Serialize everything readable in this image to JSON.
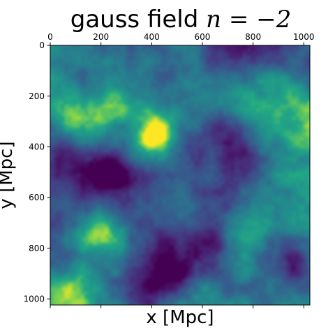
{
  "chart_data": {
    "type": "heatmap",
    "title_prefix": "gauss field ",
    "title_math": "n = −2",
    "xlabel": "x [Mpc]",
    "ylabel": "y [Mpc]",
    "xlim": [
      0,
      1024
    ],
    "ylim": [
      1024,
      0
    ],
    "x_ticks": [
      0,
      200,
      400,
      600,
      800,
      1000
    ],
    "y_ticks": [
      0,
      200,
      400,
      600,
      800,
      1000
    ],
    "x_tick_labels": [
      "0",
      "200",
      "400",
      "600",
      "800",
      "1000"
    ],
    "y_tick_labels": [
      "0",
      "200",
      "400",
      "600",
      "800",
      "1000"
    ],
    "x_ticklabels_position": "top",
    "colormap": "viridis",
    "grid": false,
    "features": [
      {
        "kind": "peak",
        "x": 425,
        "y": 330,
        "size": 55,
        "amp": 1.0
      },
      {
        "kind": "peak",
        "x": 420,
        "y": 400,
        "size": 75,
        "amp": 0.55
      },
      {
        "kind": "peak",
        "x": 130,
        "y": 285,
        "size": 75,
        "amp": 0.85
      },
      {
        "kind": "peak",
        "x": 60,
        "y": 270,
        "size": 60,
        "amp": 0.4
      },
      {
        "kind": "peak",
        "x": 185,
        "y": 740,
        "size": 45,
        "amp": 0.55
      },
      {
        "kind": "peak",
        "x": 75,
        "y": 955,
        "size": 45,
        "amp": 0.6
      },
      {
        "kind": "peak",
        "x": 930,
        "y": 230,
        "size": 110,
        "amp": 0.5
      },
      {
        "kind": "peak",
        "x": 620,
        "y": 210,
        "size": 90,
        "amp": 0.35
      },
      {
        "kind": "peak",
        "x": 870,
        "y": 690,
        "size": 120,
        "amp": 0.4
      },
      {
        "kind": "peak",
        "x": 540,
        "y": 620,
        "size": 90,
        "amp": 0.3
      },
      {
        "kind": "peak",
        "x": 300,
        "y": 220,
        "size": 70,
        "amp": 0.25
      },
      {
        "kind": "trough",
        "x": 80,
        "y": 440,
        "size": 80,
        "amp": 0.85
      },
      {
        "kind": "trough",
        "x": 230,
        "y": 540,
        "size": 70,
        "amp": 0.6
      },
      {
        "kind": "trough",
        "x": 690,
        "y": 340,
        "size": 70,
        "amp": 0.85
      },
      {
        "kind": "trough",
        "x": 760,
        "y": 500,
        "size": 90,
        "amp": 0.6
      },
      {
        "kind": "trough",
        "x": 385,
        "y": 960,
        "size": 80,
        "amp": 0.8
      },
      {
        "kind": "trough",
        "x": 480,
        "y": 900,
        "size": 70,
        "amp": 0.55
      },
      {
        "kind": "trough",
        "x": 950,
        "y": 880,
        "size": 70,
        "amp": 0.85
      },
      {
        "kind": "trough",
        "x": 770,
        "y": 980,
        "size": 90,
        "amp": 0.6
      },
      {
        "kind": "trough",
        "x": 500,
        "y": 40,
        "size": 80,
        "amp": 0.5
      },
      {
        "kind": "trough",
        "x": 650,
        "y": 800,
        "size": 60,
        "amp": 0.45
      },
      {
        "kind": "trough",
        "x": 300,
        "y": 650,
        "size": 60,
        "amp": 0.35
      }
    ]
  }
}
